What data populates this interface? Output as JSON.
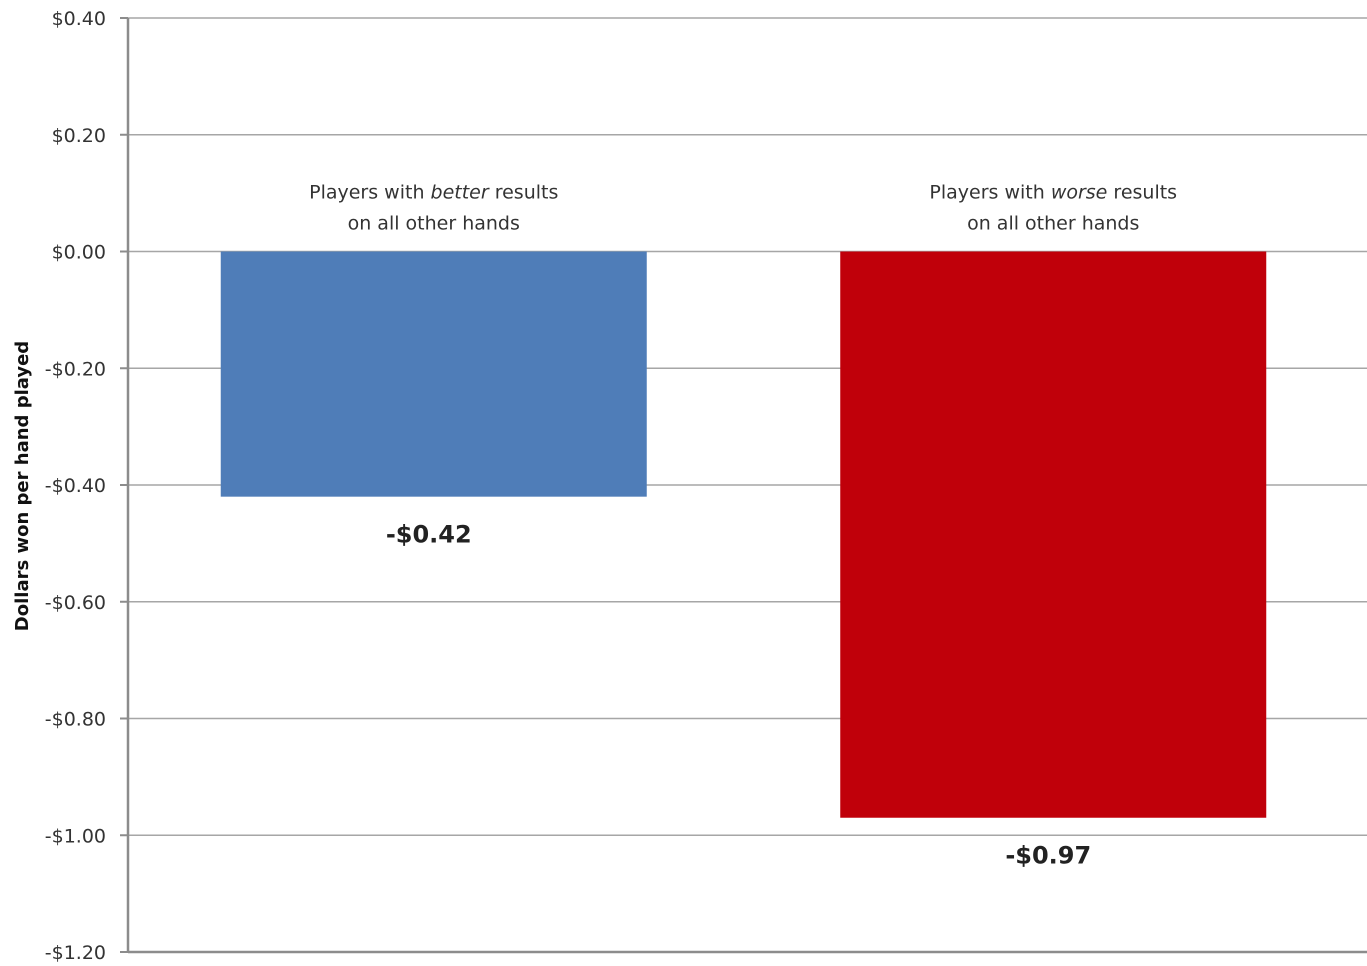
{
  "chart_data": {
    "type": "bar",
    "title": "",
    "xlabel": "",
    "ylabel": "Dollars won per hand played",
    "ylim": [
      -1.2,
      0.4
    ],
    "yticks": [
      {
        "value": 0.4,
        "label": "$0.40"
      },
      {
        "value": 0.2,
        "label": "$0.20"
      },
      {
        "value": 0.0,
        "label": "$0.00"
      },
      {
        "value": -0.2,
        "label": "-$0.20"
      },
      {
        "value": -0.4,
        "label": "-$0.40"
      },
      {
        "value": -0.6,
        "label": "-$0.60"
      },
      {
        "value": -0.8,
        "label": "-$0.80"
      },
      {
        "value": -1.0,
        "label": "-$1.00"
      },
      {
        "value": -1.2,
        "label": "-$1.20"
      }
    ],
    "grid": true,
    "legend": "none",
    "categories": [
      {
        "line1_pre": "Players with ",
        "line1_em": "better",
        "line1_post": " results",
        "line2": "on all other hands"
      },
      {
        "line1_pre": "Players with ",
        "line1_em": "worse",
        "line1_post": " results",
        "line2": "on all other hands"
      }
    ],
    "values": [
      -0.42,
      -0.97
    ],
    "data_labels": [
      "-$0.42",
      "-$0.97"
    ],
    "colors": [
      "#4f7db8",
      "#c0000a"
    ]
  }
}
